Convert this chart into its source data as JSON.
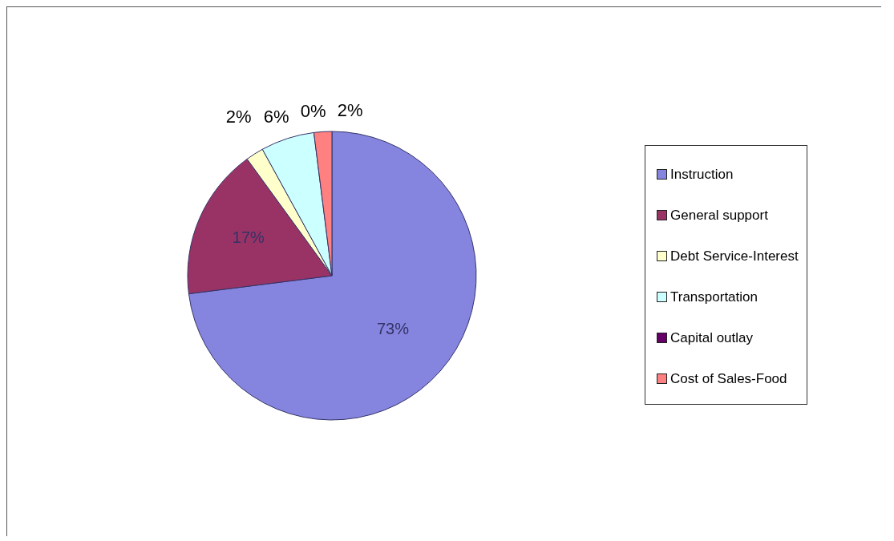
{
  "chart_data": {
    "type": "pie",
    "categories": [
      "Instruction",
      "General support",
      "Debt Service-Interest",
      "Transportation",
      "Capital outlay",
      "Cost of Sales-Food"
    ],
    "values": [
      73,
      17,
      2,
      6,
      0,
      2
    ],
    "colors": [
      "#8585e0",
      "#993366",
      "#ffffcc",
      "#ccffff",
      "#660066",
      "#ff8080"
    ],
    "value_labels": [
      "73%",
      "17%",
      "2%",
      "6%",
      "0%",
      "2%"
    ],
    "legend": "right"
  }
}
